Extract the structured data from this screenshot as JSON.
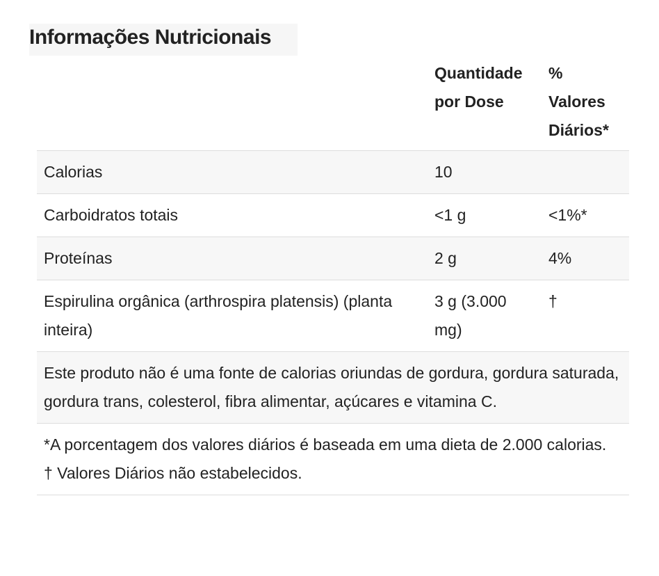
{
  "title": "Informações Nutricionais",
  "table": {
    "header": [
      "Quantidade por Dose",
      "% Valores Diários*"
    ],
    "rows": [
      [
        "Calorias",
        "10"
      ],
      [
        "Carboidratos totais",
        "<1 g",
        "<1%*"
      ],
      [
        "Proteínas",
        "2 g",
        "4%"
      ],
      [
        "Espirulina orgânica (arthrospira platensis) (planta inteira)",
        "3 g (3.000 mg)",
        "†"
      ]
    ],
    "note": "Este produto não é uma fonte de calorias oriundas de gordura, gordura saturada, gordura trans, colesterol, fibra alimentar, açúcares e vitamina C.",
    "footnotes": [
      "*A porcentagem dos valores diários é baseada em uma dieta de 2.000 calorias.",
      "† Valores Diários não estabelecidos."
    ]
  }
}
